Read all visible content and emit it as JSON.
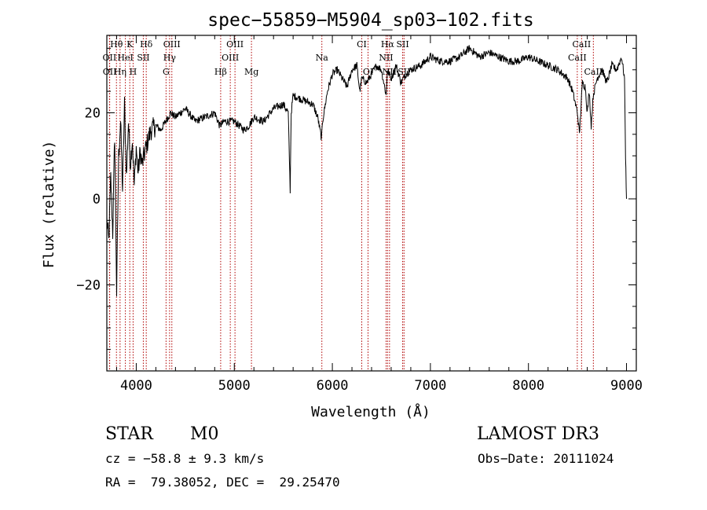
{
  "chart_data": {
    "type": "line",
    "title": "spec−55859−M5904_sp03−102.fits",
    "xlabel": "Wavelength (Å)",
    "ylabel": "Flux (relative)",
    "xlim": [
      3700,
      9100
    ],
    "ylim": [
      -40,
      38
    ],
    "x_ticks": [
      4000,
      5000,
      6000,
      7000,
      8000,
      9000
    ],
    "x_tick_labels": [
      "4000",
      "5000",
      "6000",
      "7000",
      "8000",
      "9000"
    ],
    "y_ticks": [
      -20,
      0,
      20
    ],
    "y_tick_labels": [
      "−20",
      "0",
      "20"
    ],
    "series": [
      {
        "name": "flux",
        "x": [
          3700,
          3720,
          3740,
          3760,
          3780,
          3800,
          3820,
          3840,
          3860,
          3880,
          3900,
          3920,
          3940,
          3960,
          3980,
          4000,
          4020,
          4040,
          4060,
          4080,
          4100,
          4150,
          4200,
          4250,
          4300,
          4350,
          4400,
          4500,
          4600,
          4700,
          4800,
          4850,
          4900,
          5000,
          5100,
          5150,
          5200,
          5300,
          5400,
          5500,
          5550,
          5570,
          5580,
          5600,
          5700,
          5800,
          5850,
          5890,
          5900,
          5950,
          6000,
          6050,
          6100,
          6150,
          6200,
          6250,
          6280,
          6300,
          6350,
          6400,
          6450,
          6500,
          6550,
          6560,
          6600,
          6650,
          6700,
          6750,
          6800,
          6900,
          7000,
          7100,
          7200,
          7300,
          7400,
          7500,
          7600,
          7700,
          7800,
          7900,
          8000,
          8100,
          8200,
          8300,
          8400,
          8450,
          8500,
          8520,
          8550,
          8580,
          8600,
          8620,
          8640,
          8660,
          8700,
          8750,
          8800,
          8850,
          8900,
          8950,
          8980,
          8990,
          9000
        ],
        "y": [
          -5,
          -10,
          5,
          -8,
          15,
          -22,
          10,
          18,
          2,
          22,
          5,
          18,
          8,
          14,
          3,
          12,
          6,
          11,
          8,
          10,
          12,
          16,
          17,
          16,
          18,
          20,
          19,
          21,
          18,
          19,
          20,
          17,
          18,
          18,
          16,
          17,
          19,
          18,
          21,
          22,
          20,
          2,
          20,
          24,
          23,
          22,
          19,
          14,
          18,
          25,
          29,
          30,
          28,
          26,
          30,
          31,
          25,
          28,
          27,
          29,
          31,
          30,
          24,
          30,
          28,
          31,
          27,
          29,
          30,
          31,
          33,
          32,
          32,
          33,
          35,
          33,
          34,
          33,
          32,
          32,
          33,
          32,
          31,
          30,
          28,
          25,
          20,
          15,
          27,
          26,
          20,
          25,
          17,
          24,
          28,
          30,
          27,
          31,
          30,
          33,
          28,
          10,
          0
        ]
      }
    ],
    "line_markers": [
      {
        "label": "Hθ",
        "x": 3798,
        "row": 1
      },
      {
        "label": "K",
        "x": 3934,
        "row": 1
      },
      {
        "label": "Hδ",
        "x": 4102,
        "row": 1
      },
      {
        "label": "OIII",
        "x": 4363,
        "row": 1
      },
      {
        "label": "OIII",
        "x": 5007,
        "row": 1
      },
      {
        "label": "CI",
        "x": 6300,
        "row": 1
      },
      {
        "label": "Hα",
        "x": 6563,
        "row": 1
      },
      {
        "label": "SII",
        "x": 6717,
        "row": 1
      },
      {
        "label": "CaII",
        "x": 8542,
        "row": 1
      },
      {
        "label": "OII",
        "x": 3727,
        "row": 2
      },
      {
        "label": "HeI",
        "x": 3889,
        "row": 2
      },
      {
        "label": "SII",
        "x": 4072,
        "row": 2
      },
      {
        "label": "Hγ",
        "x": 4340,
        "row": 2
      },
      {
        "label": "OIII",
        "x": 4959,
        "row": 2
      },
      {
        "label": "Na",
        "x": 5893,
        "row": 2
      },
      {
        "label": "NII",
        "x": 6548,
        "row": 2
      },
      {
        "label": "CaII",
        "x": 8498,
        "row": 2
      },
      {
        "label": "OII",
        "x": 3729,
        "row": 3
      },
      {
        "label": "Hη",
        "x": 3835,
        "row": 3
      },
      {
        "label": "H",
        "x": 3968,
        "row": 3
      },
      {
        "label": "G",
        "x": 4304,
        "row": 3
      },
      {
        "label": "Hβ",
        "x": 4861,
        "row": 3
      },
      {
        "label": "Mg",
        "x": 5175,
        "row": 3
      },
      {
        "label": "OI",
        "x": 6364,
        "row": 3
      },
      {
        "label": "NII",
        "x": 6583,
        "row": 3
      },
      {
        "label": "SII",
        "x": 6731,
        "row": 3
      },
      {
        "label": "CaII",
        "x": 8662,
        "row": 3
      }
    ]
  },
  "info": {
    "object_class": "STAR",
    "subclass": "M0",
    "survey": "LAMOST DR3",
    "redshift": "cz = −58.8 ± 9.3 km/s",
    "obs_date": "Obs−Date: 20111024",
    "coords": "RA =  79.38052, DEC =  29.25470"
  },
  "colors": {
    "line_marker": "#b00000",
    "spectrum": "#000000"
  }
}
